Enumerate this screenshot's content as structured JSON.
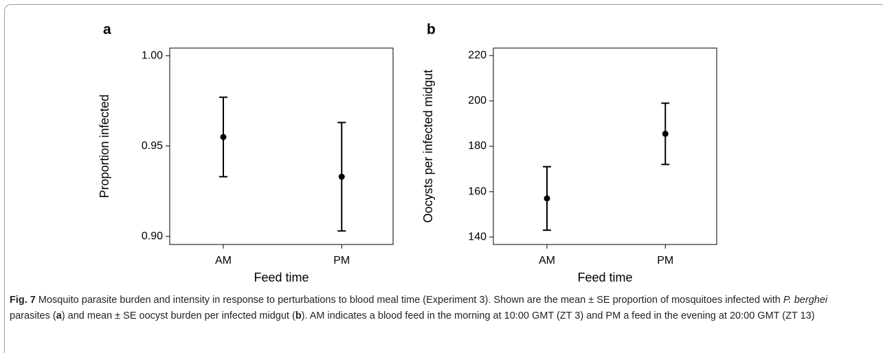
{
  "chart_data": [
    {
      "type": "errorbar",
      "panel": "a",
      "y_label": "Proportion infected",
      "x_label": "Feed time",
      "categories": [
        "AM",
        "PM"
      ],
      "values": [
        0.955,
        0.933
      ],
      "errors": [
        0.022,
        0.03
      ],
      "color": "#000000",
      "ylim": [
        0.8955,
        1.0042
      ],
      "yticks": [
        {
          "value": 0.9,
          "label": "0.90"
        },
        {
          "value": 0.95,
          "label": "0.95"
        },
        {
          "value": 1.0,
          "label": "1.00"
        }
      ]
    },
    {
      "type": "errorbar",
      "panel": "b",
      "y_label": "Oocysts per infected midgut",
      "x_label": "Feed time",
      "categories": [
        "AM",
        "PM"
      ],
      "values": [
        157,
        185.5
      ],
      "errors": [
        14,
        13.5
      ],
      "color": "#000000",
      "ylim": [
        136.7,
        223.3
      ],
      "yticks": [
        140,
        160,
        180,
        200,
        220
      ]
    }
  ],
  "caption": {
    "parts": [
      "Fig. 7",
      " Mosquito parasite burden and intensity in response to perturbations to blood meal time (Experiment 3). Shown are the mean ± SE proportion of mosquitoes infected with ",
      "P. berghei",
      " parasites (",
      "a",
      ") and mean ± SE oocyst burden per infected midgut (",
      "b",
      "). AM indicates a blood feed in the morning at 10:00 GMT (ZT 3) and PM a feed in the evening at 20:00 GMT (ZT 13)"
    ]
  }
}
